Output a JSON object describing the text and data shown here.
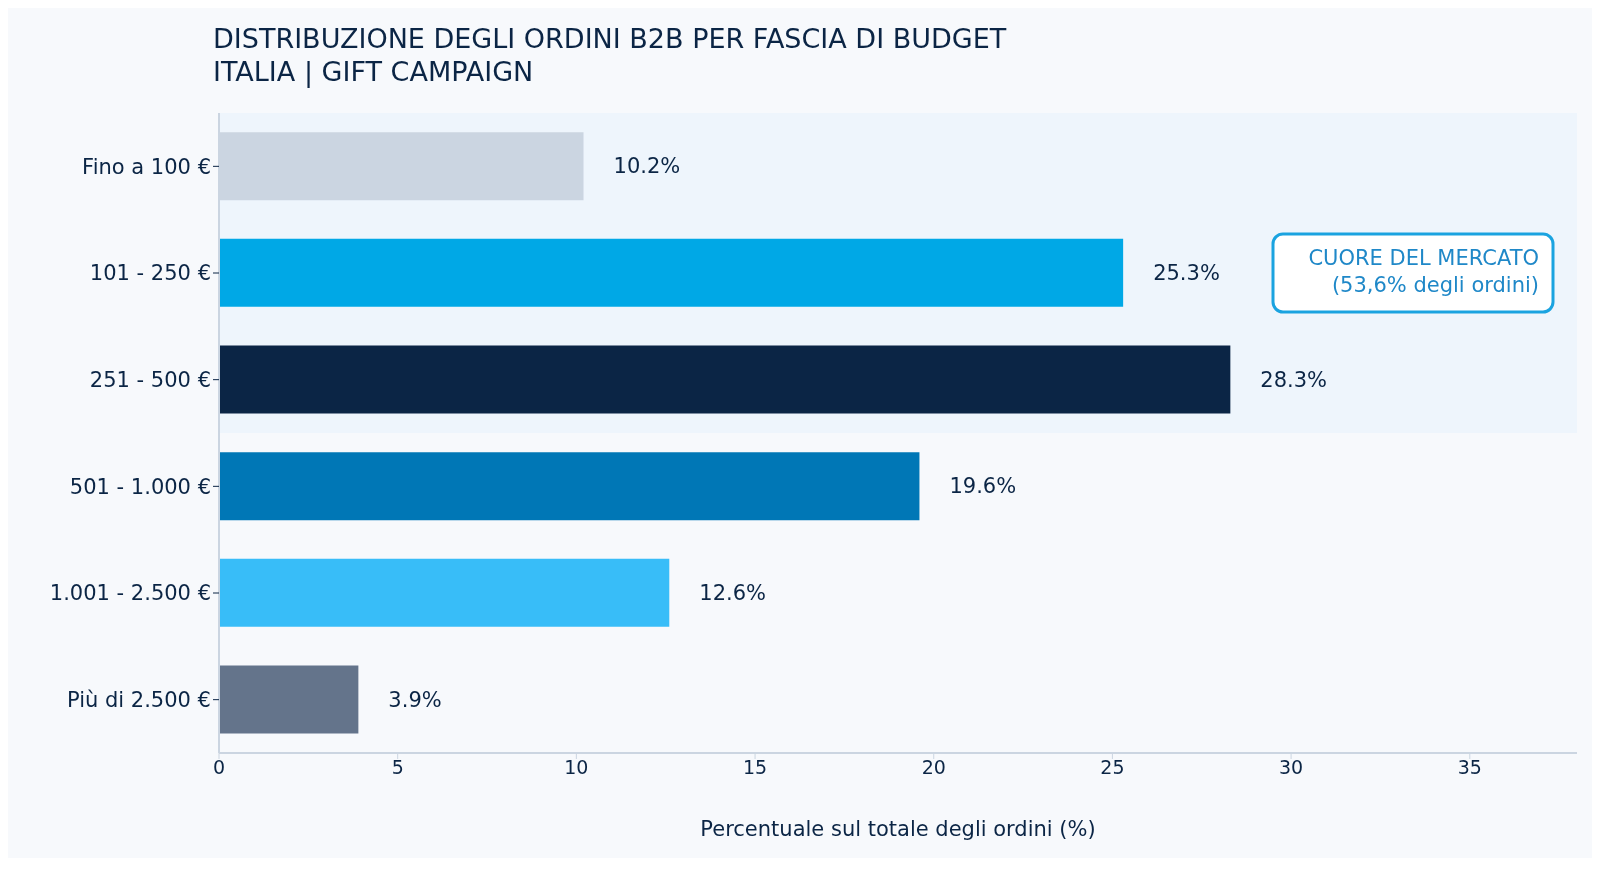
{
  "chart_data": {
    "type": "bar",
    "orientation": "horizontal",
    "title": "DISTRIBUZIONE DEGLI ORDINI B2B PER FASCIA DI BUDGET",
    "subtitle": "ITALIA | GIFT CAMPAIGN",
    "xlabel": "Percentuale sul totale degli ordini (%)",
    "categories": [
      "Fino a 100 €",
      "101 - 250 €",
      "251 - 500 €",
      "501 - 1.000 €",
      "1.001 - 2.500 €",
      "Più di 2.500 €"
    ],
    "values": [
      10.2,
      25.3,
      28.3,
      19.6,
      12.6,
      3.9
    ],
    "colors": [
      "#cbd5e1",
      "#00a8e6",
      "#0b2545",
      "#0077b6",
      "#38bdf8",
      "#64748b"
    ],
    "value_labels": [
      "10.2%",
      "25.3%",
      "28.3%",
      "19.6%",
      "12.6%",
      "3.9%"
    ],
    "xlim": [
      0,
      38
    ],
    "xticks": [
      0,
      5,
      10,
      15,
      20,
      25,
      30,
      35
    ],
    "bands": [
      {
        "axis": "y",
        "from": "Fino a 100 €",
        "to": "251 - 500 €",
        "label": "CUORE DEL MERCATO\n(53,6% degli ordini)",
        "color": "#eef5fc"
      }
    ],
    "grid": false
  }
}
